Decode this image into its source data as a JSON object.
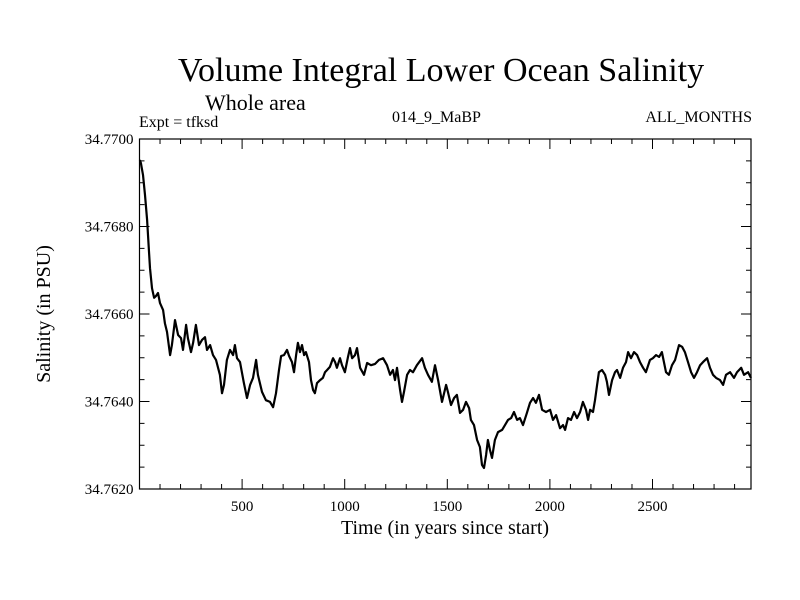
{
  "chart_data": {
    "type": "line",
    "title": "Volume Integral Lower Ocean Salinity",
    "subtitle": "Whole area",
    "annotations": {
      "left": "Expt = tfksd",
      "center": "014_9_MaBP",
      "right": "ALL_MONTHS"
    },
    "xlabel": "Time (in years since start)",
    "ylabel": "Salinity (in PSU)",
    "xlim": [
      0,
      2980
    ],
    "ylim": [
      34.762,
      34.77
    ],
    "x_major_ticks": [
      500,
      1000,
      1500,
      2000,
      2500
    ],
    "x_tick_labels": [
      "500",
      "1000",
      "1500",
      "2000",
      "2500"
    ],
    "x_minor_step": 100,
    "y_major_ticks": [
      34.77,
      34.768,
      34.766,
      34.764,
      34.762
    ],
    "y_tick_labels": [
      "34.7700",
      "34.7680",
      "34.7660",
      "34.7640",
      "34.7620"
    ],
    "y_minor_step": 0.0005,
    "grid": false,
    "legend": "none",
    "series": [
      {
        "name": "salinity",
        "color": "#000000",
        "x": [
          2,
          7,
          17,
          27,
          37,
          46,
          51,
          61,
          71,
          80,
          90,
          100,
          115,
          124,
          134,
          149,
          158,
          173,
          188,
          202,
          212,
          227,
          236,
          251,
          261,
          275,
          290,
          305,
          319,
          329,
          344,
          358,
          373,
          392,
          402,
          412,
          426,
          441,
          456,
          465,
          475,
          490,
          509,
          524,
          539,
          553,
          568,
          577,
          597,
          616,
          636,
          651,
          665,
          680,
          690,
          704,
          719,
          729,
          743,
          753,
          763,
          772,
          782,
          792,
          802,
          811,
          826,
          836,
          846,
          855,
          865,
          880,
          894,
          904,
          914,
          928,
          943,
          953,
          962,
          977,
          987,
          1001,
          1016,
          1026,
          1036,
          1050,
          1060,
          1075,
          1094,
          1109,
          1128,
          1148,
          1167,
          1187,
          1206,
          1221,
          1235,
          1245,
          1255,
          1270,
          1279,
          1289,
          1304,
          1318,
          1333,
          1352,
          1377,
          1391,
          1406,
          1425,
          1440,
          1455,
          1474,
          1494,
          1503,
          1518,
          1533,
          1547,
          1562,
          1577,
          1591,
          1606,
          1615,
          1630,
          1645,
          1659,
          1669,
          1679,
          1689,
          1698,
          1708,
          1718,
          1732,
          1747,
          1767,
          1781,
          1796,
          1811,
          1825,
          1840,
          1854,
          1869,
          1888,
          1903,
          1918,
          1932,
          1947,
          1962,
          1981,
          2001,
          2015,
          2030,
          2049,
          2064,
          2074,
          2088,
          2103,
          2118,
          2132,
          2147,
          2161,
          2176,
          2186,
          2196,
          2210,
          2220,
          2230,
          2239,
          2254,
          2269,
          2278,
          2288,
          2303,
          2317,
          2327,
          2342,
          2356,
          2371,
          2381,
          2395,
          2410,
          2425,
          2439,
          2454,
          2468,
          2488,
          2502,
          2517,
          2532,
          2546,
          2566,
          2580,
          2595,
          2610,
          2629,
          2644,
          2658,
          2673,
          2688,
          2702,
          2717,
          2732,
          2746,
          2766,
          2780,
          2795,
          2810,
          2829,
          2844,
          2858,
          2878,
          2897,
          2912,
          2932,
          2946,
          2966,
          2980
        ],
        "y": [
          34.76952,
          34.76945,
          34.76918,
          34.76872,
          34.76815,
          34.76746,
          34.76705,
          34.76659,
          34.76637,
          34.76641,
          34.76648,
          34.76625,
          34.76609,
          34.76579,
          34.76559,
          34.76506,
          34.76529,
          34.76586,
          34.76552,
          34.76545,
          34.76518,
          34.76575,
          34.76545,
          34.76513,
          34.76534,
          34.76575,
          34.76529,
          34.76541,
          34.76547,
          34.76518,
          34.76529,
          34.76506,
          34.76495,
          34.76461,
          34.76419,
          34.76438,
          34.76495,
          34.76518,
          34.76506,
          34.76529,
          34.76499,
          34.7649,
          34.76442,
          34.76408,
          34.76438,
          34.76454,
          34.76495,
          34.76461,
          34.76422,
          34.76403,
          34.76399,
          34.76387,
          34.76419,
          34.76472,
          34.76504,
          34.76506,
          34.76518,
          34.76504,
          34.7649,
          34.76467,
          34.76506,
          34.76534,
          34.76513,
          34.76529,
          34.76506,
          34.76513,
          34.7649,
          34.76449,
          34.76426,
          34.76419,
          34.76442,
          34.76449,
          34.76454,
          34.76467,
          34.76472,
          34.76479,
          34.76499,
          34.7649,
          34.76477,
          34.76499,
          34.76483,
          34.76467,
          34.76502,
          34.76522,
          34.76499,
          34.76506,
          34.76522,
          34.76477,
          34.76461,
          34.76488,
          34.76483,
          34.76486,
          34.76495,
          34.76499,
          34.76483,
          34.76461,
          34.76472,
          34.76449,
          34.76477,
          34.76426,
          34.76399,
          34.76422,
          34.76461,
          34.76472,
          34.76467,
          34.76483,
          34.76499,
          34.76477,
          34.76461,
          34.76445,
          34.76483,
          34.76449,
          34.76399,
          34.76438,
          34.76422,
          34.76392,
          34.76408,
          34.76415,
          34.76374,
          34.76381,
          34.76399,
          34.76385,
          34.76358,
          34.76346,
          34.76312,
          34.76296,
          34.76255,
          34.76248,
          34.76278,
          34.76312,
          34.76289,
          34.76271,
          34.76312,
          34.7633,
          34.76335,
          34.76346,
          34.76358,
          34.76362,
          34.76376,
          34.76358,
          34.76362,
          34.76346,
          34.76374,
          34.76397,
          34.76408,
          34.76397,
          34.76415,
          34.76381,
          34.76376,
          34.76381,
          34.76358,
          34.76369,
          34.76339,
          34.76346,
          34.76335,
          34.76362,
          34.76358,
          34.76376,
          34.76362,
          34.76376,
          34.76399,
          34.76381,
          34.76358,
          34.76381,
          34.76376,
          34.76403,
          34.76438,
          34.76467,
          34.76472,
          34.76461,
          34.76445,
          34.76415,
          34.76449,
          34.76467,
          34.76472,
          34.76454,
          34.76477,
          34.7649,
          34.76513,
          34.76499,
          34.76513,
          34.76506,
          34.7649,
          34.76477,
          34.76467,
          34.76495,
          34.76499,
          34.76506,
          34.76502,
          34.76513,
          34.76467,
          34.76461,
          34.76483,
          34.76495,
          34.76529,
          34.76525,
          34.76513,
          34.7649,
          34.76467,
          34.76454,
          34.76467,
          34.76483,
          34.7649,
          34.76499,
          34.76477,
          34.76461,
          34.76454,
          34.76449,
          34.76438,
          34.76461,
          34.76467,
          34.76454,
          34.76467,
          34.76477,
          34.76461,
          34.76467,
          34.76454
        ]
      }
    ]
  }
}
